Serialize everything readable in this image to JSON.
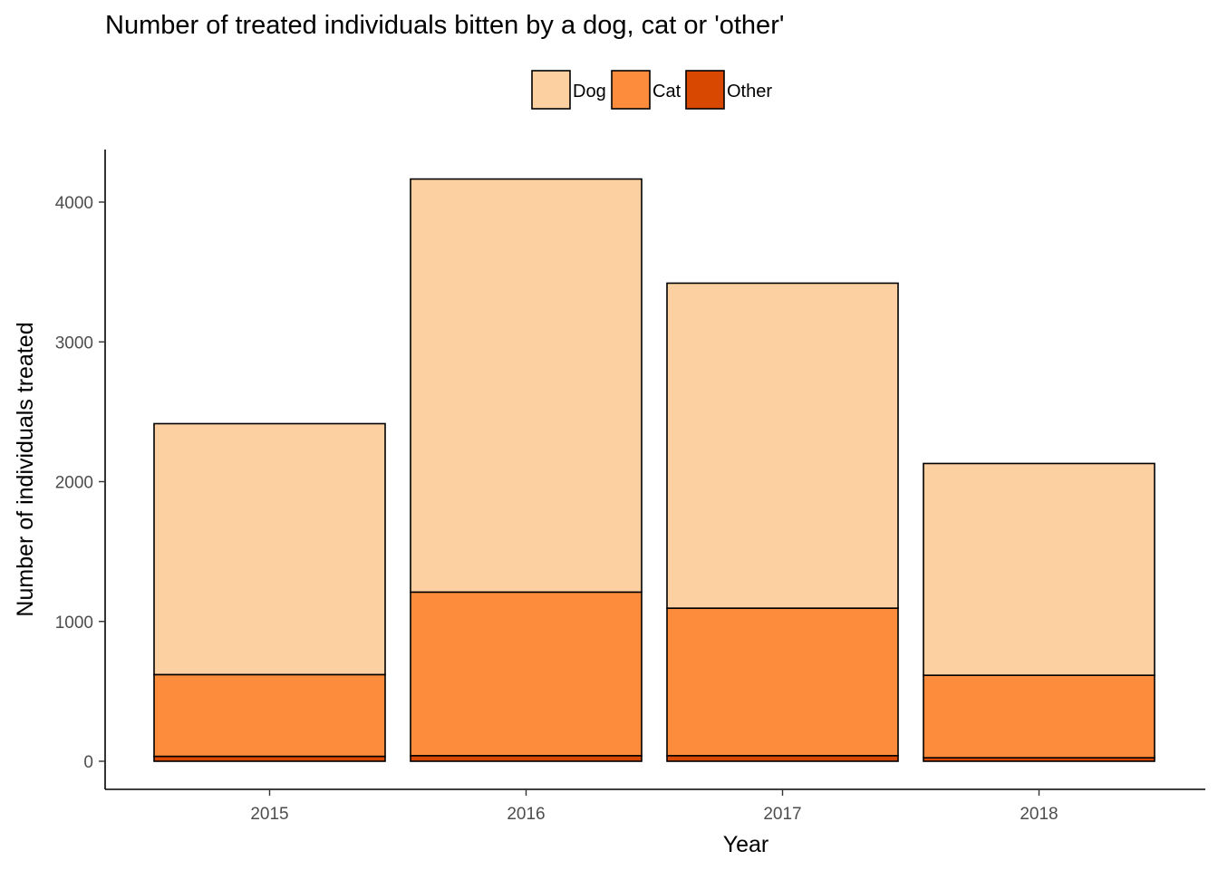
{
  "chart_data": {
    "type": "bar",
    "stacked": true,
    "title": "Number of treated individuals bitten by a dog, cat or 'other'",
    "xlabel": "Year",
    "ylabel": "Number of individuals treated",
    "categories": [
      "2015",
      "2016",
      "2017",
      "2018"
    ],
    "series": [
      {
        "name": "Other",
        "color": "#d94801",
        "values": [
          35,
          40,
          40,
          25
        ]
      },
      {
        "name": "Cat",
        "color": "#fd8d3c",
        "values": [
          585,
          1170,
          1055,
          590
        ]
      },
      {
        "name": "Dog",
        "color": "#fdd0a2",
        "values": [
          1795,
          2955,
          2325,
          1515
        ]
      }
    ],
    "legend": {
      "position": "top",
      "order": [
        "Dog",
        "Cat",
        "Other"
      ]
    },
    "yticks": [
      0,
      1000,
      2000,
      3000,
      4000
    ],
    "ylim": [
      -200,
      4370
    ],
    "grid": false
  }
}
